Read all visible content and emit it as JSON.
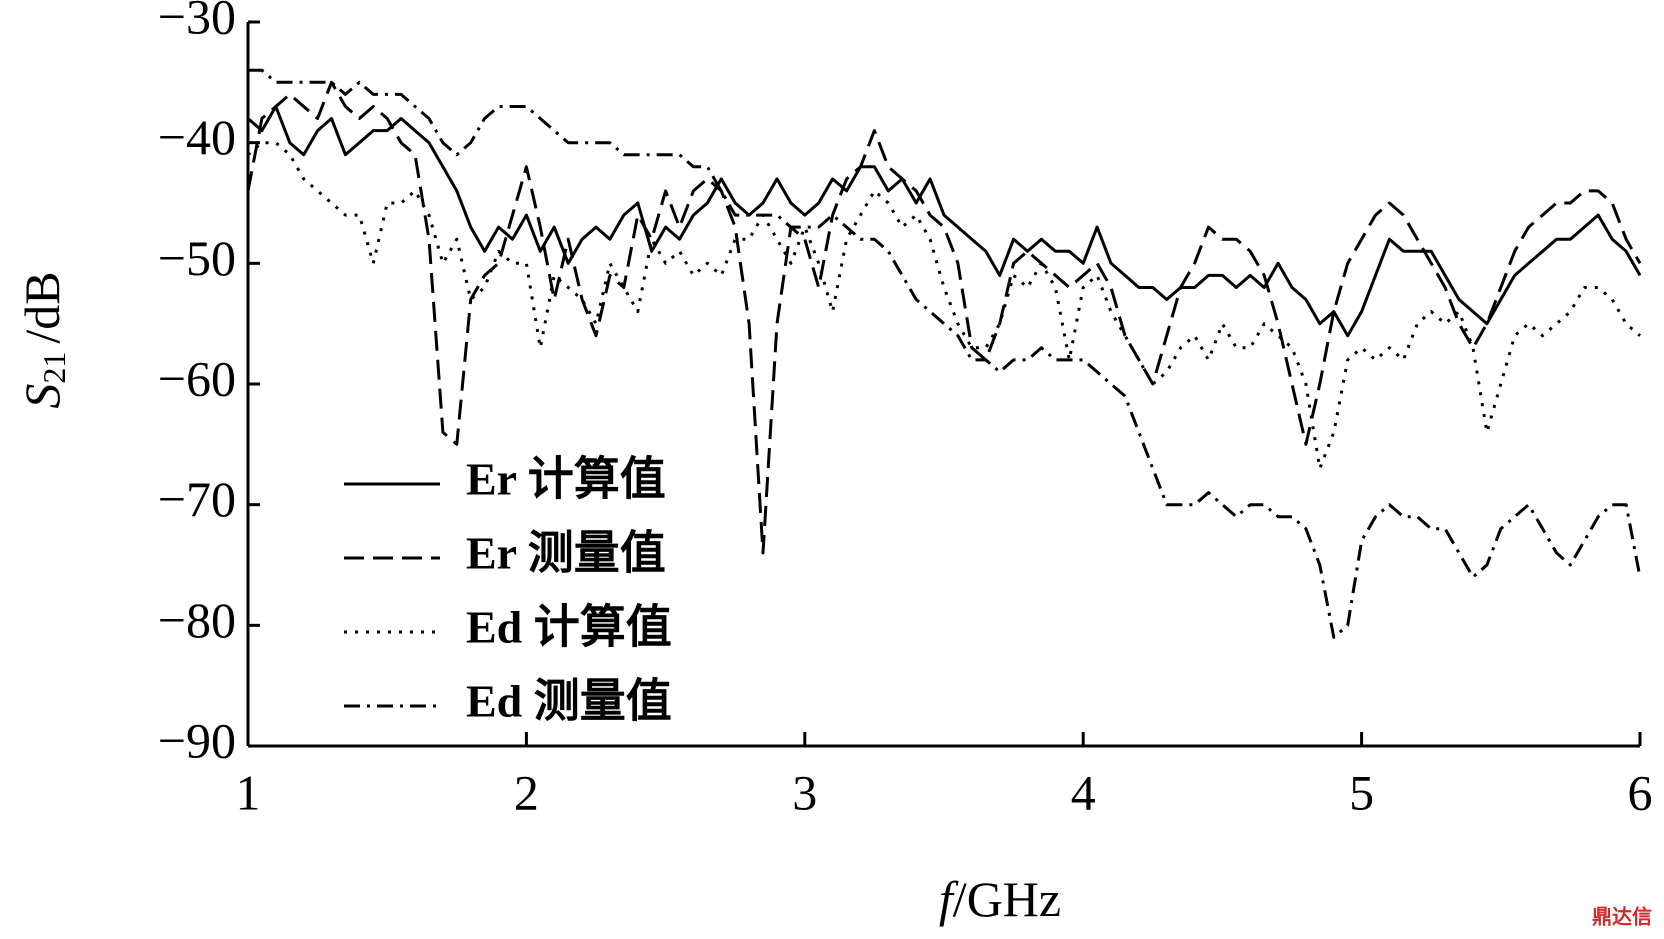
{
  "chart_data": {
    "type": "line",
    "xlabel_symbol": "f",
    "xlabel_unit": "/GHz",
    "ylabel_symbol": "S",
    "ylabel_sub": "21",
    "ylabel_unit": "/dB",
    "watermark": "鼎达信",
    "xlim": [
      1,
      6
    ],
    "ylim": [
      -90,
      -30
    ],
    "xticks": [
      1,
      2,
      3,
      4,
      5,
      6
    ],
    "yticks": [
      {
        "value": -90,
        "label": "−90"
      },
      {
        "value": -80,
        "label": "−80"
      },
      {
        "value": -70,
        "label": "−70"
      },
      {
        "value": -60,
        "label": "−60"
      },
      {
        "value": -50,
        "label": "−50"
      },
      {
        "value": -40,
        "label": "−40"
      },
      {
        "value": -30,
        "label": "−30"
      }
    ],
    "grid": false,
    "legend": "lower left",
    "x": [
      1,
      1.05,
      1.1,
      1.15,
      1.2,
      1.25,
      1.3,
      1.35,
      1.4,
      1.45,
      1.5,
      1.55,
      1.6,
      1.65,
      1.7,
      1.75,
      1.8,
      1.85,
      1.9,
      1.95,
      2,
      2.05,
      2.1,
      2.15,
      2.2,
      2.25,
      2.3,
      2.35,
      2.4,
      2.45,
      2.5,
      2.55,
      2.6,
      2.65,
      2.7,
      2.75,
      2.8,
      2.85,
      2.9,
      2.95,
      3,
      3.05,
      3.1,
      3.15,
      3.2,
      3.25,
      3.3,
      3.35,
      3.4,
      3.45,
      3.5,
      3.55,
      3.6,
      3.65,
      3.7,
      3.75,
      3.8,
      3.85,
      3.9,
      3.95,
      4,
      4.05,
      4.1,
      4.15,
      4.2,
      4.25,
      4.3,
      4.35,
      4.4,
      4.45,
      4.5,
      4.55,
      4.6,
      4.65,
      4.7,
      4.75,
      4.8,
      4.85,
      4.9,
      4.95,
      5,
      5.05,
      5.1,
      5.15,
      5.2,
      5.25,
      5.3,
      5.35,
      5.4,
      5.45,
      5.5,
      5.55,
      5.6,
      5.65,
      5.7,
      5.75,
      5.8,
      5.85,
      5.9,
      5.95,
      6
    ],
    "series": [
      {
        "name": "Er 计算值",
        "color": "#000000",
        "dash": "solid",
        "values": [
          -38,
          -39,
          -37,
          -40,
          -41,
          -39,
          -38,
          -41,
          -40,
          -39,
          -39,
          -38,
          -39,
          -40,
          -42,
          -44,
          -47,
          -49,
          -47,
          -48,
          -46,
          -49,
          -47,
          -50,
          -48,
          -47,
          -48,
          -46,
          -45,
          -49,
          -47,
          -48,
          -46,
          -45,
          -43,
          -45,
          -46,
          -45,
          -43,
          -45,
          -46,
          -45,
          -43,
          -44,
          -42,
          -42,
          -44,
          -43,
          -45,
          -43,
          -46,
          -47,
          -48,
          -49,
          -51,
          -48,
          -49,
          -48,
          -49,
          -49,
          -50,
          -47,
          -50,
          -51,
          -52,
          -52,
          -53,
          -52,
          -52,
          -51,
          -51,
          -52,
          -51,
          -52,
          -50,
          -52,
          -53,
          -55,
          -54,
          -56,
          -54,
          -51,
          -48,
          -49,
          -49,
          -49,
          -51,
          -53,
          -54,
          -55,
          -53,
          -51,
          -50,
          -49,
          -48,
          -48,
          -47,
          -46,
          -48,
          -49,
          -51
        ]
      },
      {
        "name": "Er 测量值",
        "color": "#000000",
        "dash": "dashed",
        "values": [
          -44,
          -38,
          -37,
          -36,
          -37,
          -38,
          -35,
          -37,
          -38,
          -37,
          -38,
          -40,
          -41,
          -48,
          -64,
          -65,
          -53,
          -51,
          -50,
          -46,
          -42,
          -47,
          -53,
          -48,
          -53,
          -56,
          -51,
          -52,
          -46,
          -48,
          -44,
          -47,
          -44,
          -43,
          -44,
          -47,
          -55,
          -74,
          -55,
          -47,
          -48,
          -52,
          -46,
          -43,
          -42,
          -39,
          -42,
          -43,
          -44,
          -46,
          -47,
          -50,
          -57,
          -58,
          -55,
          -50,
          -49,
          -50,
          -51,
          -52,
          -51,
          -50,
          -52,
          -56,
          -58,
          -60,
          -56,
          -52,
          -50,
          -47,
          -48,
          -48,
          -49,
          -51,
          -55,
          -60,
          -65,
          -60,
          -54,
          -50,
          -48,
          -46,
          -45,
          -46,
          -48,
          -50,
          -52,
          -55,
          -57,
          -55,
          -52,
          -49,
          -47,
          -46,
          -45,
          -45,
          -44,
          -44,
          -45,
          -48,
          -50
        ]
      },
      {
        "name": "Ed 计算值",
        "color": "#000000",
        "dash": "dotted",
        "values": [
          -41,
          -40,
          -40,
          -41,
          -43,
          -44,
          -45,
          -46,
          -46,
          -50,
          -45,
          -45,
          -44,
          -46,
          -50,
          -48,
          -53,
          -52,
          -49,
          -50,
          -50,
          -57,
          -51,
          -52,
          -53,
          -55,
          -50,
          -52,
          -54,
          -48,
          -50,
          -49,
          -51,
          -50,
          -51,
          -48,
          -48,
          -46,
          -48,
          -50,
          -47,
          -50,
          -54,
          -48,
          -46,
          -44,
          -45,
          -47,
          -46,
          -48,
          -52,
          -55,
          -57,
          -57,
          -55,
          -51,
          -52,
          -50,
          -52,
          -58,
          -52,
          -51,
          -54,
          -56,
          -58,
          -60,
          -59,
          -57,
          -56,
          -58,
          -55,
          -57,
          -57,
          -55,
          -56,
          -57,
          -60,
          -67,
          -64,
          -58,
          -57,
          -58,
          -57,
          -58,
          -55,
          -54,
          -55,
          -54,
          -57,
          -64,
          -60,
          -56,
          -55,
          -56,
          -55,
          -54,
          -52,
          -52,
          -53,
          -55,
          -56
        ]
      },
      {
        "name": "Ed 测量值",
        "color": "#000000",
        "dash": "dashdot",
        "values": [
          -34,
          -34,
          -35,
          -35,
          -35,
          -35,
          -35,
          -36,
          -35,
          -36,
          -36,
          -36,
          -37,
          -38,
          -40,
          -41,
          -40,
          -38,
          -37,
          -37,
          -37,
          -38,
          -39,
          -40,
          -40,
          -40,
          -40,
          -41,
          -41,
          -41,
          -41,
          -41,
          -42,
          -42,
          -44,
          -46,
          -46,
          -46,
          -46,
          -47,
          -47,
          -47,
          -46,
          -47,
          -48,
          -48,
          -49,
          -51,
          -53,
          -54,
          -55,
          -56,
          -58,
          -58,
          -59,
          -58,
          -58,
          -57,
          -58,
          -58,
          -58,
          -59,
          -60,
          -61,
          -64,
          -67,
          -70,
          -70,
          -70,
          -69,
          -70,
          -71,
          -70,
          -70,
          -71,
          -71,
          -72,
          -75,
          -81,
          -80,
          -73,
          -71,
          -70,
          -71,
          -71,
          -72,
          -72,
          -74,
          -76,
          -75,
          -72,
          -71,
          -70,
          -72,
          -74,
          -75,
          -73,
          -71,
          -70,
          -70,
          -76
        ]
      }
    ]
  }
}
